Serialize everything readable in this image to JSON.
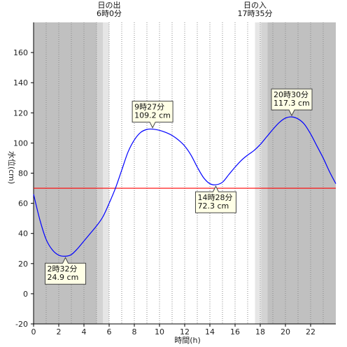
{
  "chart_data": {
    "type": "line",
    "xlabel": "時間(h)",
    "ylabel": "水位(cm)",
    "xlim": [
      0,
      24
    ],
    "ylim": [
      -20,
      180
    ],
    "x_ticks": [
      0,
      2,
      4,
      6,
      8,
      10,
      12,
      14,
      16,
      18,
      20,
      22
    ],
    "y_ticks": [
      -20,
      0,
      20,
      40,
      60,
      80,
      100,
      120,
      140,
      160
    ],
    "grid": "vertical dotted every 1 h",
    "series": [
      {
        "color": "#0000ff",
        "points": [
          [
            0,
            66
          ],
          [
            0.5,
            49
          ],
          [
            1,
            36
          ],
          [
            1.5,
            29
          ],
          [
            2,
            25.6
          ],
          [
            2.53,
            24.9
          ],
          [
            3,
            26
          ],
          [
            3.5,
            30
          ],
          [
            4,
            35
          ],
          [
            4.5,
            40
          ],
          [
            5,
            45
          ],
          [
            5.5,
            51
          ],
          [
            6,
            60
          ],
          [
            6.5,
            70
          ],
          [
            7,
            82
          ],
          [
            7.5,
            94
          ],
          [
            8,
            102
          ],
          [
            8.5,
            107
          ],
          [
            9,
            109
          ],
          [
            9.45,
            109.2
          ],
          [
            10,
            108.4
          ],
          [
            10.5,
            107
          ],
          [
            11,
            105
          ],
          [
            11.5,
            102
          ],
          [
            12,
            98
          ],
          [
            12.5,
            92
          ],
          [
            13,
            84
          ],
          [
            13.5,
            77
          ],
          [
            14,
            73
          ],
          [
            14.47,
            72.3
          ],
          [
            15,
            74
          ],
          [
            15.5,
            79
          ],
          [
            16,
            84
          ],
          [
            16.5,
            88.5
          ],
          [
            17,
            92
          ],
          [
            17.5,
            95
          ],
          [
            18,
            99
          ],
          [
            18.5,
            104
          ],
          [
            19,
            109
          ],
          [
            19.5,
            113.5
          ],
          [
            20,
            116.5
          ],
          [
            20.5,
            117.3
          ],
          [
            21,
            116
          ],
          [
            21.5,
            112.5
          ],
          [
            22,
            106
          ],
          [
            22.5,
            98
          ],
          [
            23,
            90
          ],
          [
            23.5,
            81
          ],
          [
            24,
            73
          ]
        ]
      }
    ],
    "reference_line": {
      "y": 70,
      "color": "#ff0000"
    },
    "daylight": {
      "sunrise_hour": 6.0,
      "sunset_hour": 17.583,
      "night_color": "#c0c0c0",
      "twilight_outer_color": "#d3d3d3",
      "twilight_inner_color": "#e6e6e6",
      "day_color": "#ffffff"
    },
    "top_labels": [
      {
        "hour": 6.0,
        "lines": [
          "日の出",
          "6時0分"
        ]
      },
      {
        "hour": 17.583,
        "lines": [
          "日の入",
          "17時35分"
        ]
      }
    ],
    "annotations": [
      {
        "x": 2.53,
        "y": 24.9,
        "lines": [
          "2時32分",
          "24.9 cm"
        ],
        "side": "below"
      },
      {
        "x": 9.45,
        "y": 109.2,
        "lines": [
          "9時27分",
          "109.2 cm"
        ],
        "side": "above"
      },
      {
        "x": 14.47,
        "y": 72.3,
        "lines": [
          "14時28分",
          "72.3 cm"
        ],
        "side": "below"
      },
      {
        "x": 20.5,
        "y": 117.3,
        "lines": [
          "20時30分",
          "117.3 cm"
        ],
        "side": "above"
      }
    ]
  }
}
